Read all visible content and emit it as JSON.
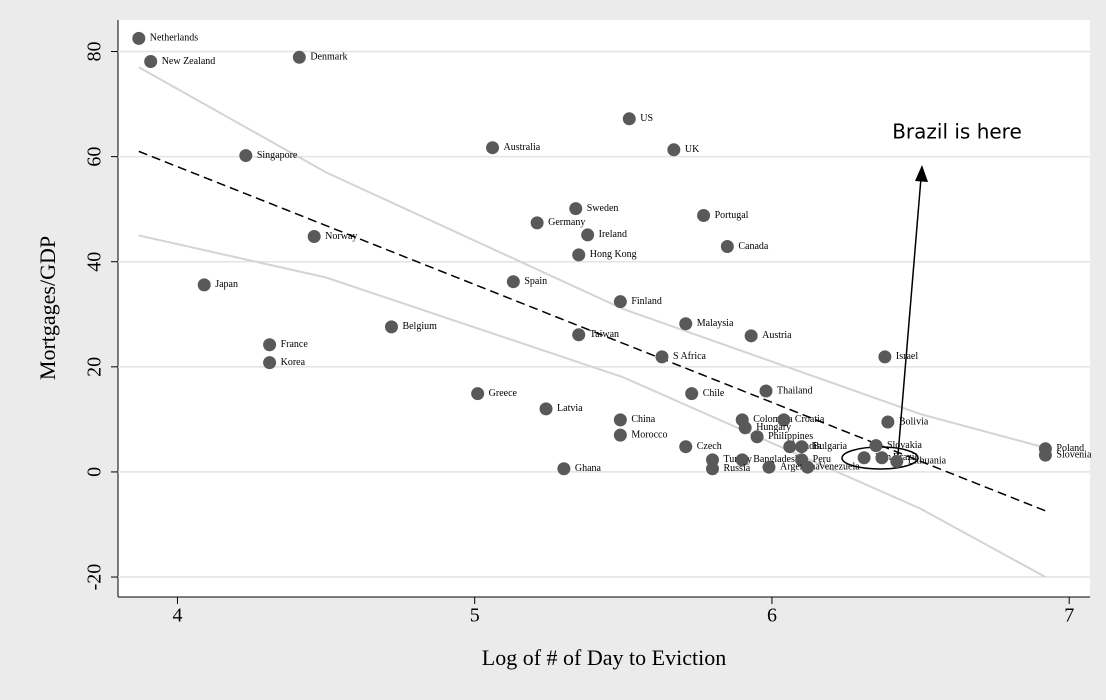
{
  "chart_data": {
    "type": "scatter",
    "x_label": "Log of # of Day to Eviction",
    "y_label": "Mortgages/GDP",
    "annotation": "Brazil is here",
    "xlim": [
      3.8,
      7.07
    ],
    "ylim": [
      -23.8,
      86
    ],
    "xticks": [
      4,
      5,
      6,
      7
    ],
    "yticks": [
      -20,
      0,
      20,
      40,
      60,
      80
    ],
    "grid": true,
    "color": "#595959",
    "labels": [
      "Netherlands",
      "New Zealand",
      "Denmark",
      "Singapore",
      "Norway",
      "Japan",
      "France",
      "Korea",
      "Belgium",
      "Australia",
      "US",
      "UK",
      "Sweden",
      "Germany",
      "Ireland",
      "Hong Kong",
      "Portugal",
      "Canada",
      "Spain",
      "Finland",
      "Malaysia",
      "Taiwan",
      "Austria",
      "S Africa",
      "Israel",
      "Thailand",
      "Greece",
      "Chile",
      "Latvia",
      "China",
      "Bolivia",
      "Colombia",
      "Croatia",
      "Hungary",
      "Morocco",
      "Philippines",
      "Czech",
      "India",
      "Bulgaria",
      "Slovakia",
      "Poland",
      "Slovenia",
      "Turkey",
      "Bangladesh",
      "Peru",
      "Ghana",
      "Russia",
      "Argentina",
      "Venezuela",
      "Iran",
      "Brazil",
      "Lithuania"
    ],
    "x": [
      3.87,
      3.91,
      4.41,
      4.23,
      4.46,
      4.09,
      4.31,
      4.31,
      4.72,
      5.06,
      5.52,
      5.67,
      5.34,
      5.21,
      5.38,
      5.35,
      5.77,
      5.85,
      5.13,
      5.49,
      5.71,
      5.35,
      5.93,
      5.63,
      6.38,
      5.98,
      5.01,
      5.73,
      5.24,
      5.49,
      6.39,
      5.9,
      6.04,
      5.91,
      5.49,
      5.95,
      5.71,
      6.06,
      6.1,
      6.35,
      6.92,
      6.92,
      5.8,
      5.9,
      6.1,
      5.3,
      5.8,
      5.99,
      6.12,
      6.31,
      6.37,
      6.42
    ],
    "values": [
      82.5,
      78.1,
      78.9,
      60.2,
      44.8,
      35.6,
      24.2,
      20.8,
      27.6,
      61.7,
      67.2,
      61.3,
      50.1,
      47.4,
      45.1,
      41.3,
      48.8,
      42.9,
      36.2,
      32.4,
      28.2,
      26.1,
      25.9,
      21.9,
      21.9,
      15.4,
      14.9,
      14.9,
      12.0,
      9.9,
      9.5,
      9.9,
      9.9,
      8.4,
      7.0,
      6.7,
      4.8,
      4.8,
      4.8,
      5.0,
      4.4,
      3.2,
      2.3,
      2.3,
      2.3,
      0.6,
      0.6,
      0.9,
      0.9,
      2.7,
      2.7,
      2.0
    ],
    "fit": {
      "x": [
        3.87,
        6.92
      ],
      "values": [
        61,
        -7.4
      ]
    },
    "upper_band": {
      "x": [
        3.87,
        4.5,
        5,
        5.5,
        6,
        6.5,
        6.92
      ],
      "values": [
        77,
        57,
        44,
        31,
        21,
        11,
        4.6
      ]
    },
    "lower_band": {
      "x": [
        3.87,
        4.5,
        5,
        5.5,
        6,
        6.5,
        6.92
      ],
      "values": [
        45,
        37,
        27.5,
        18,
        5.5,
        -7,
        -20
      ]
    }
  }
}
